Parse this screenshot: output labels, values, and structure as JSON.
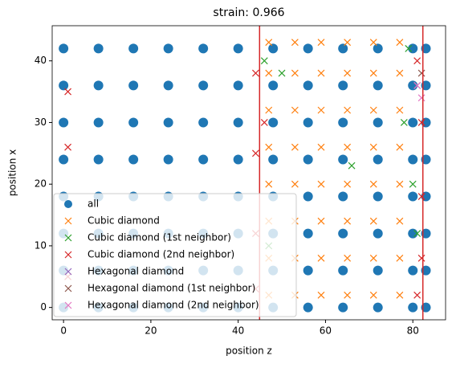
{
  "chart_data": {
    "type": "scatter",
    "title": "strain: 0.966",
    "xlabel": "position z",
    "ylabel": "position x",
    "xlim": [
      -2.6,
      87.5
    ],
    "ylim": [
      -2,
      45.7
    ],
    "xticks": [
      0,
      20,
      40,
      60,
      80
    ],
    "yticks": [
      0,
      10,
      20,
      30,
      40
    ],
    "legend": "lower left",
    "vlines": [
      44.9,
      82.3
    ],
    "vline_color": "#d62728",
    "series": [
      {
        "name": "all",
        "color": "#1f77b4",
        "marker": "o",
        "x": [
          0,
          0,
          0,
          0,
          0,
          0,
          0,
          0,
          8,
          8,
          8,
          8,
          8,
          8,
          8,
          8,
          16,
          16,
          16,
          16,
          16,
          16,
          16,
          16,
          24,
          24,
          24,
          24,
          24,
          24,
          24,
          24,
          32,
          32,
          32,
          32,
          32,
          32,
          32,
          32,
          40,
          40,
          40,
          40,
          40,
          40,
          40,
          40,
          48,
          48,
          48,
          48,
          48,
          48,
          48,
          48,
          56,
          56,
          56,
          56,
          56,
          56,
          56,
          56,
          64,
          64,
          64,
          64,
          64,
          64,
          64,
          64,
          72,
          72,
          72,
          72,
          72,
          72,
          72,
          72,
          80,
          80,
          80,
          80,
          80,
          80,
          80,
          80,
          83,
          83,
          83,
          83,
          83,
          83,
          83,
          83
        ],
        "values": [
          0,
          6,
          12,
          18,
          24,
          30,
          36,
          42,
          0,
          6,
          12,
          18,
          24,
          30,
          36,
          42,
          0,
          6,
          12,
          18,
          24,
          30,
          36,
          42,
          0,
          6,
          12,
          18,
          24,
          30,
          36,
          42,
          0,
          6,
          12,
          18,
          24,
          30,
          36,
          42,
          0,
          6,
          12,
          18,
          24,
          30,
          36,
          42,
          0,
          6,
          12,
          18,
          24,
          30,
          36,
          42,
          0,
          6,
          12,
          18,
          24,
          30,
          36,
          42,
          0,
          6,
          12,
          18,
          24,
          30,
          36,
          42,
          0,
          6,
          12,
          18,
          24,
          30,
          36,
          42,
          0,
          6,
          12,
          18,
          24,
          30,
          36,
          42,
          0,
          6,
          12,
          18,
          24,
          30,
          36,
          42
        ]
      },
      {
        "name": "Cubic diamond",
        "color": "#ff7f0e",
        "marker": "x",
        "x": [
          47,
          47,
          47,
          47,
          47,
          47,
          47,
          47,
          53,
          53,
          53,
          53,
          53,
          53,
          53,
          53,
          59,
          59,
          59,
          59,
          59,
          59,
          59,
          59,
          65,
          65,
          65,
          65,
          65,
          65,
          65,
          65,
          71,
          71,
          71,
          71,
          71,
          71,
          71,
          71,
          77,
          77,
          77,
          77,
          77,
          77,
          77,
          77
        ],
        "values": [
          2,
          8,
          14,
          20,
          26,
          32,
          38,
          43,
          2,
          8,
          14,
          20,
          26,
          32,
          38,
          43,
          2,
          8,
          14,
          20,
          26,
          32,
          38,
          43,
          2,
          8,
          14,
          20,
          26,
          32,
          38,
          43,
          2,
          8,
          14,
          20,
          26,
          32,
          38,
          43,
          2,
          8,
          14,
          20,
          26,
          32,
          38,
          43
        ]
      },
      {
        "name": "Cubic diamond (1st neighbor)",
        "color": "#2ca02c",
        "marker": "x",
        "x": [
          46,
          50,
          66,
          79,
          80,
          81,
          47,
          78
        ],
        "values": [
          40,
          38,
          23,
          42,
          20,
          12,
          10,
          30
        ]
      },
      {
        "name": "Cubic diamond (2nd neighbor)",
        "color": "#d62728",
        "marker": "x",
        "x": [
          1,
          1,
          1,
          44,
          44,
          44,
          44,
          81,
          82,
          82,
          82,
          81,
          46
        ],
        "values": [
          35,
          26,
          5,
          38,
          25,
          12,
          3,
          40,
          30,
          18,
          8,
          2,
          30
        ]
      },
      {
        "name": "Hexagonal diamond",
        "color": "#9467bd",
        "marker": "x",
        "x": [
          81
        ],
        "values": [
          36
        ]
      },
      {
        "name": "Hexagonal diamond (1st neighbor)",
        "color": "#8c564b",
        "marker": "x",
        "x": [
          82
        ],
        "values": [
          38
        ]
      },
      {
        "name": "Hexagonal diamond (2nd neighbor)",
        "color": "#e377c2",
        "marker": "x",
        "x": [
          81,
          82
        ],
        "values": [
          36,
          34
        ]
      }
    ]
  }
}
